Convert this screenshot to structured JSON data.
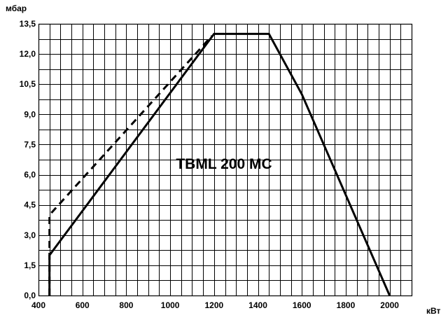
{
  "chart_data": {
    "type": "line",
    "title": "",
    "annotation": "TBML 200 MC",
    "ylabel": "мбар",
    "xlabel": "кВт",
    "xlim": [
      400,
      2100
    ],
    "ylim": [
      0,
      13.5
    ],
    "x_ticks": [
      400,
      600,
      800,
      1000,
      1200,
      1400,
      1600,
      1800,
      2000
    ],
    "x_tick_labels": [
      "400",
      "600",
      "800",
      "1000",
      "1200",
      "1400",
      "1600",
      "1800",
      "2000"
    ],
    "y_ticks": [
      0,
      1.5,
      3,
      4.5,
      6,
      7.5,
      9,
      10.5,
      12,
      13.5
    ],
    "y_tick_labels": [
      "0,0",
      "1,5",
      "3,0",
      "4,5",
      "6,0",
      "7,5",
      "9,0",
      "10,5",
      "12,0",
      "13,5"
    ],
    "grid": true,
    "x_minor_step": 50,
    "y_minor_step": 0.75,
    "series": [
      {
        "style": "solid",
        "x": [
          450,
          450,
          1200,
          1450,
          1600,
          2000
        ],
        "y": [
          0,
          2,
          13,
          13,
          10,
          0
        ]
      },
      {
        "style": "dashed",
        "x": [
          450,
          450,
          1190
        ],
        "y": [
          0,
          4,
          12.9
        ]
      }
    ]
  }
}
